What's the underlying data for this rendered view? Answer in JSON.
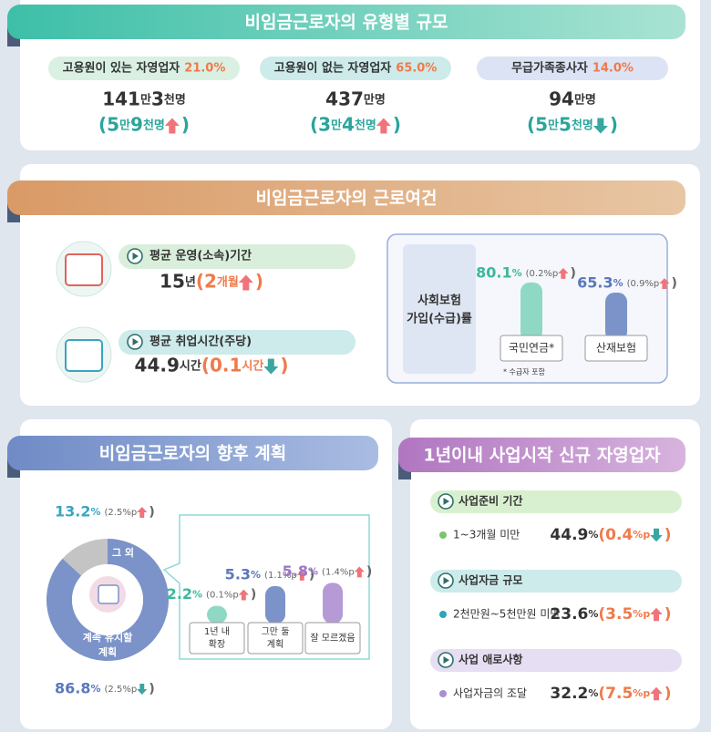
{
  "types": {
    "title": "비임금근로자의 유형별 규모",
    "items": [
      {
        "label": "고용원이 있는 자영업자",
        "share": "21.0%",
        "count": [
          "141",
          "만 ",
          "3",
          "천명"
        ],
        "change": [
          "(",
          "5",
          "만 ",
          "9",
          "천명",
          ")"
        ],
        "arrow": "up"
      },
      {
        "label": "고용원이 없는 자영업자",
        "share": "65.0%",
        "count": [
          "437",
          "만명"
        ],
        "change": [
          "(",
          "3",
          "만 ",
          "4",
          "천명",
          ")"
        ],
        "arrow": "up"
      },
      {
        "label": "무급가족종사자",
        "share": "14.0%",
        "count": [
          "94",
          "만명"
        ],
        "change": [
          "(",
          "5",
          "만 ",
          "5",
          "천명",
          ")"
        ],
        "arrow": "down"
      }
    ]
  },
  "conditions": {
    "title": "비임금근로자의 근로여건",
    "items": [
      {
        "label": "평균 운영(소속)기간",
        "value": [
          "15",
          "년 ",
          "(",
          "2",
          "개월",
          ")"
        ],
        "arrow": "up"
      },
      {
        "label": "평균 취업시간(주당)",
        "value": [
          "44.9",
          "시간 ",
          "(",
          "0.1",
          "시간",
          ")"
        ],
        "arrow": "down"
      }
    ],
    "insurance": {
      "title": [
        "사회보험",
        "가입(수급)률"
      ],
      "bars": [
        {
          "label": "국민연금*",
          "value": 80.1,
          "unit": "%",
          "change": "(0.2%p",
          "close": ")",
          "arrow": "up",
          "color": "#8fd9c4"
        },
        {
          "label": "산재보험",
          "value": 65.3,
          "unit": "%",
          "change": "(0.9%p",
          "close": ")",
          "arrow": "up",
          "color": "#7b93c8"
        }
      ],
      "note": "* 수급자 포함"
    }
  },
  "plans": {
    "title": "비임금근로자의 향후 계획",
    "donut": [
      {
        "label": [
          "그 외"
        ],
        "value": 13.2,
        "unit": "%",
        "change": "(2.5%p",
        "close": ")",
        "arrow": "up",
        "color": "#c4c4c4"
      },
      {
        "label": [
          "계속 유지할",
          "계획"
        ],
        "value": 86.8,
        "unit": "%",
        "change": "(2.5%p",
        "close": ")",
        "arrow": "down",
        "color": "#7b93c8"
      }
    ],
    "detail": [
      {
        "label": [
          "1년 내",
          "확장"
        ],
        "value": 2.2,
        "unit": "%",
        "change": "(0.1%p",
        "close": ")",
        "arrow": "up",
        "color": "#8fd9c4"
      },
      {
        "label": [
          "그만 둘",
          "계획"
        ],
        "value": 5.3,
        "unit": "%",
        "change": "(1.1%p",
        "close": ")",
        "arrow": "up",
        "color": "#7b93c8"
      },
      {
        "label": [
          "잘 모르겠음"
        ],
        "value": 5.8,
        "unit": "%",
        "change": "(1.4%p",
        "close": ")",
        "arrow": "up",
        "color": "#b59ad6"
      }
    ]
  },
  "newbiz": {
    "title": "1년이내 사업시작 신규 자영업자",
    "sections": [
      {
        "heading": "사업준비 기간",
        "label": "1~3개월 미만",
        "value": [
          "44.9",
          "% ",
          "(",
          "0.4",
          "%p",
          ")"
        ],
        "arrow": "down"
      },
      {
        "heading": "사업자금 규모",
        "label": "2천만원~5천만원 미만",
        "value": [
          "23.6",
          "% ",
          "(",
          "3.5",
          "%p",
          ")"
        ],
        "arrow": "up"
      },
      {
        "heading": "사업 애로사항",
        "label": "사업자금의 조달",
        "value": [
          "32.2",
          "% ",
          "(",
          "7.5",
          "%p",
          ")"
        ],
        "arrow": "up"
      }
    ]
  }
}
